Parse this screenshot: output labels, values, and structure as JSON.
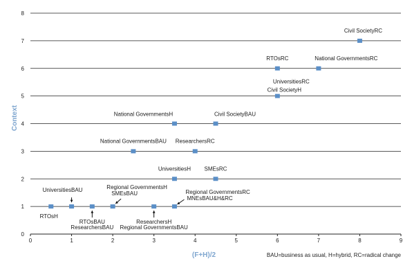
{
  "chart_data": {
    "type": "scatter",
    "title": "",
    "xlabel": "(F+H)/2",
    "ylabel": "Context",
    "xlim": [
      0,
      9
    ],
    "ylim": [
      0,
      8
    ],
    "x_ticks": [
      0,
      1,
      2,
      3,
      4,
      5,
      6,
      7,
      8,
      9
    ],
    "y_ticks": [
      0,
      1,
      2,
      3,
      4,
      5,
      6,
      7,
      8
    ],
    "grid": "horizontal",
    "marker_color": "#5b8fc7",
    "axis_title_color": "#7fa6cf",
    "points": [
      {
        "x": 0.5,
        "y": 1,
        "label": "RTOsH"
      },
      {
        "x": 1,
        "y": 1,
        "label": "UniversitiesBAU"
      },
      {
        "x": 1.5,
        "y": 1,
        "label": "RTOsBAU"
      },
      {
        "x": 1.5,
        "y": 1,
        "label": "ResearchersBAU"
      },
      {
        "x": 2,
        "y": 1,
        "label": "Regional GovernmentsH"
      },
      {
        "x": 2,
        "y": 1,
        "label": "SMEsBAU"
      },
      {
        "x": 3,
        "y": 1,
        "label": "ResearchersH"
      },
      {
        "x": 3,
        "y": 1,
        "label": "Regional GovernmentsBAU"
      },
      {
        "x": 3.5,
        "y": 1,
        "label": "Regional GovernmentsRC"
      },
      {
        "x": 3.5,
        "y": 1,
        "label": "MNEsBAU&H&RC"
      },
      {
        "x": 3.5,
        "y": 2,
        "label": "UniversitiesH"
      },
      {
        "x": 4.5,
        "y": 2,
        "label": "SMEsRC"
      },
      {
        "x": 2.5,
        "y": 3,
        "label": "National GovernmentsBAU"
      },
      {
        "x": 4,
        "y": 3,
        "label": "ResearchersRC"
      },
      {
        "x": 3.5,
        "y": 4,
        "label": "National GovernmentsH"
      },
      {
        "x": 4.5,
        "y": 4,
        "label": "Civil SocietyBAU"
      },
      {
        "x": 6,
        "y": 5,
        "label": "UniversitiesRC"
      },
      {
        "x": 6,
        "y": 5,
        "label": "Civil SocietyH"
      },
      {
        "x": 6,
        "y": 6,
        "label": "RTOsRC"
      },
      {
        "x": 7,
        "y": 6,
        "label": "National GovernmentsRC"
      },
      {
        "x": 8,
        "y": 7,
        "label": "Civil SocietyRC"
      }
    ],
    "footnote": "BAU=business as usual, H=hybrid, RC=radical change"
  }
}
